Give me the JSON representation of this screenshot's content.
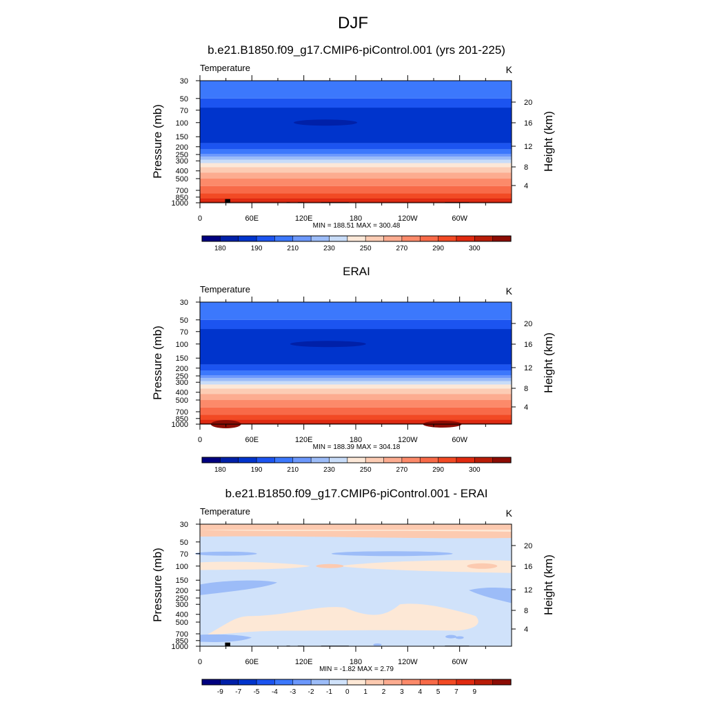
{
  "figure": {
    "title": "DJF"
  },
  "colors": {
    "temperature_levels": [
      "#00007f",
      "#0020a8",
      "#0034cc",
      "#1c54f0",
      "#3c78fc",
      "#6c98fc",
      "#9cbcf8",
      "#c8dcf8",
      "#fce8d8",
      "#fcccb4",
      "#fcac90",
      "#fc8a6a",
      "#f86a48",
      "#f24a24",
      "#e02a10",
      "#b81c08",
      "#8c0c04"
    ],
    "difference_levels": [
      "#00007f",
      "#0020a8",
      "#0034cc",
      "#1c54f0",
      "#3c78fc",
      "#6c98fc",
      "#9cbcf8",
      "#d0e2fa",
      "#fde8d6",
      "#fccab0",
      "#fcac90",
      "#fc8a6a",
      "#f86a48",
      "#f24a24",
      "#e02a10",
      "#b81c08",
      "#8c0c04"
    ]
  },
  "chart_data": [
    {
      "type": "heatmap",
      "title": "b.e21.B1850.f09_g17.CMIP6-piControl.001 (yrs 201-225)",
      "left_label": "Temperature",
      "right_label": "K",
      "ylabel": "Pressure (mb)",
      "y2label": "Height (km)",
      "xticks": [
        "0",
        "60E",
        "120E",
        "180",
        "120W",
        "60W"
      ],
      "yticks": [
        "30",
        "50",
        "70",
        "100",
        "150",
        "200",
        "250",
        "300",
        "400",
        "500",
        "700",
        "850",
        "1000"
      ],
      "y2ticks": [
        "20",
        "16",
        "12",
        "8",
        "4"
      ],
      "x_range": [
        0,
        360
      ],
      "y_range": [
        1000,
        30
      ],
      "y_scale": "log",
      "stats": "MIN = 188.51  MAX = 300.48",
      "min": 188.51,
      "max": 300.48,
      "colorbar_labels": [
        "180",
        "190",
        "210",
        "230",
        "250",
        "270",
        "290",
        "300"
      ],
      "legend_position": "bottom",
      "terrain_mask": true
    },
    {
      "type": "heatmap",
      "title": "ERAI",
      "left_label": "Temperature",
      "right_label": "K",
      "ylabel": "Pressure (mb)",
      "y2label": "Height (km)",
      "xticks": [
        "0",
        "60E",
        "120E",
        "180",
        "120W",
        "60W"
      ],
      "yticks": [
        "30",
        "50",
        "70",
        "100",
        "150",
        "200",
        "250",
        "300",
        "400",
        "500",
        "700",
        "850",
        "1000"
      ],
      "y2ticks": [
        "20",
        "16",
        "12",
        "8",
        "4"
      ],
      "x_range": [
        0,
        360
      ],
      "y_range": [
        1000,
        30
      ],
      "y_scale": "log",
      "stats": "MIN = 188.39  MAX = 304.18",
      "min": 188.39,
      "max": 304.18,
      "colorbar_labels": [
        "180",
        "190",
        "210",
        "230",
        "250",
        "270",
        "290",
        "300"
      ],
      "legend_position": "bottom",
      "terrain_mask": false
    },
    {
      "type": "heatmap",
      "title": "b.e21.B1850.f09_g17.CMIP6-piControl.001 - ERAI",
      "left_label": "Temperature",
      "right_label": "K",
      "ylabel": "Pressure (mb)",
      "y2label": "Height (km)",
      "xticks": [
        "0",
        "60E",
        "120E",
        "180",
        "120W",
        "60W"
      ],
      "yticks": [
        "30",
        "50",
        "70",
        "100",
        "150",
        "200",
        "250",
        "300",
        "400",
        "500",
        "700",
        "850",
        "1000"
      ],
      "y2ticks": [
        "20",
        "16",
        "12",
        "8",
        "4"
      ],
      "x_range": [
        0,
        360
      ],
      "y_range": [
        1000,
        30
      ],
      "y_scale": "log",
      "stats": "MIN =  -1.82  MAX =   2.79",
      "min": -1.82,
      "max": 2.79,
      "colorbar_labels": [
        "-9",
        "-7",
        "-5",
        "-4",
        "-3",
        "-2",
        "-1",
        "0",
        "1",
        "2",
        "3",
        "4",
        "5",
        "7",
        "9"
      ],
      "legend_position": "bottom",
      "terrain_mask": true
    }
  ]
}
